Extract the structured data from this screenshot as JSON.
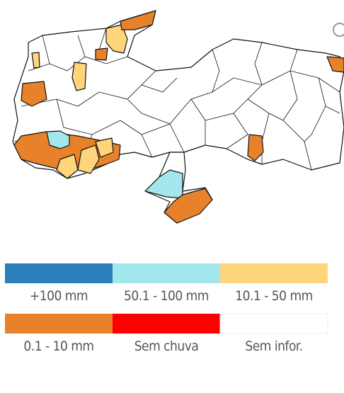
{
  "legend": [
    {
      "label": "+100 mm",
      "color": "#2b7fba"
    },
    {
      "label": "50.1 - 100 mm",
      "color": "#a3e7ed"
    },
    {
      "label": "10.1 - 50 mm",
      "color": "#ffd57b"
    },
    {
      "label": "0.1 - 10 mm",
      "color": "#e7822b"
    },
    {
      "label": "Sem chuva",
      "color": "#ff0000"
    },
    {
      "label": "Sem infor.",
      "color": "#ffffff"
    }
  ]
}
